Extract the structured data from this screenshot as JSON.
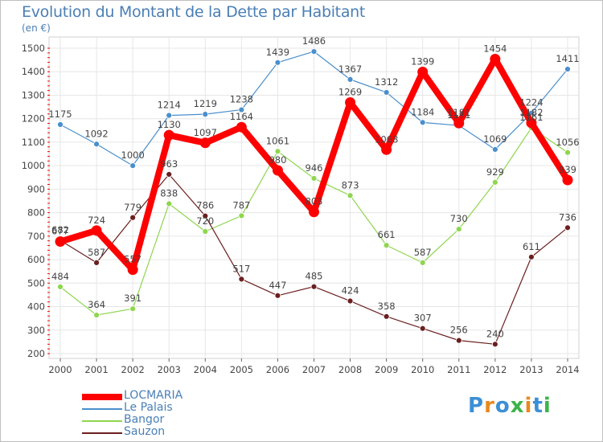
{
  "chart_data": {
    "type": "line",
    "title": "Evolution du Montant de la Dette par Habitant",
    "unit_label": "(en €)",
    "xlabel": "",
    "ylabel": "",
    "ylim": [
      200,
      1500
    ],
    "yticks": [
      200,
      300,
      400,
      500,
      600,
      700,
      800,
      900,
      1000,
      1100,
      1200,
      1300,
      1400,
      1500
    ],
    "grid": true,
    "legend_position": "bottom-left",
    "categories": [
      "2000",
      "2001",
      "2002",
      "2003",
      "2004",
      "2005",
      "2006",
      "2007",
      "2008",
      "2009",
      "2010",
      "2011",
      "2012",
      "2013",
      "2014"
    ],
    "series": [
      {
        "name": "Le Palais",
        "color": "#4a8fcc",
        "width": 1.2,
        "marker": 3.5,
        "values": [
          1175,
          1092,
          1000,
          1214,
          1219,
          1238,
          1439,
          1486,
          1367,
          1312,
          1184,
          1171,
          1069,
          1224,
          1411
        ],
        "labels": [
          "1175",
          "1092",
          "1000",
          "1214",
          "1219",
          "1238",
          "1439",
          "1486",
          "1367",
          "1312",
          "1184",
          "1171",
          "1069",
          "1224",
          "1411"
        ]
      },
      {
        "name": "Bangor",
        "color": "#8fd64f",
        "width": 1.2,
        "marker": 3.5,
        "values": [
          484,
          364,
          391,
          838,
          720,
          787,
          1061,
          946,
          873,
          661,
          587,
          730,
          929,
          1161,
          1056
        ],
        "labels": [
          "484",
          "364",
          "391",
          "838",
          "720",
          "787",
          "1061",
          "946",
          "873",
          "661",
          "587",
          "730",
          "929",
          "1161",
          "1056"
        ]
      },
      {
        "name": "Sauzon",
        "color": "#6b1f1f",
        "width": 1.2,
        "marker": 3.5,
        "values": [
          682,
          587,
          779,
          963,
          786,
          517,
          447,
          485,
          424,
          358,
          307,
          256,
          240,
          611,
          736
        ],
        "labels": [
          "682",
          "587",
          "779",
          "963",
          "786",
          "517",
          "447",
          "485",
          "424",
          "358",
          "307",
          "256",
          "240",
          "611",
          "736"
        ]
      },
      {
        "name": "LOCMARIA",
        "color": "#ff0000",
        "width": 8,
        "marker": 6.5,
        "values": [
          677,
          724,
          557,
          1130,
          1097,
          1164,
          980,
          803,
          1269,
          1068,
          1399,
          1181,
          1454,
          1182,
          939
        ],
        "labels": [
          "677",
          "724",
          "557",
          "1130",
          "1097",
          "1164",
          "980",
          "803",
          "1269",
          "1068",
          "1399",
          "1181",
          "1454",
          "1182",
          "939"
        ]
      }
    ],
    "legend_order": [
      "LOCMARIA",
      "Le Palais",
      "Bangor",
      "Sauzon"
    ]
  },
  "logo": {
    "letters": [
      "P",
      "r",
      "o",
      "x",
      "i",
      "t",
      "i"
    ],
    "colors": [
      "#3b8fd6",
      "#e8891e",
      "#3b8fd6",
      "#3cb44a",
      "#e8891e",
      "#3b8fd6",
      "#3cb44a"
    ]
  }
}
